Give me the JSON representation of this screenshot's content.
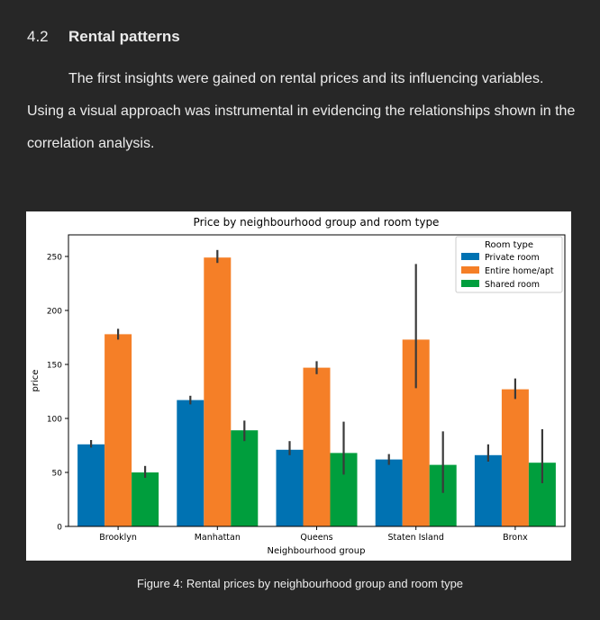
{
  "section": {
    "number": "4.2",
    "title": "Rental patterns"
  },
  "body_text": "The first insights were gained on rental prices and its influencing variables. Using a visual approach was instrumental in evidencing the relationships shown in the correlation analysis.",
  "caption": "Figure 4: Rental prices by neighbourhood group and room type",
  "chart_data": {
    "type": "bar",
    "title": "Price by neighbourhood group and room type",
    "xlabel": "Neighbourhood group",
    "ylabel": "price",
    "ylim": [
      0,
      270
    ],
    "yticks": [
      0,
      50,
      100,
      150,
      200,
      250
    ],
    "categories": [
      "Brooklyn",
      "Manhattan",
      "Queens",
      "Staten Island",
      "Bronx"
    ],
    "legend": {
      "title": "Room type",
      "placement": "top-right"
    },
    "series": [
      {
        "name": "Private room",
        "color": "#0072b2",
        "values": [
          76,
          117,
          71,
          62,
          66
        ],
        "error": [
          [
            73,
            80
          ],
          [
            113,
            121
          ],
          [
            66,
            79
          ],
          [
            57,
            67
          ],
          [
            60,
            76
          ]
        ]
      },
      {
        "name": "Entire home/apt",
        "color": "#f57f27",
        "values": [
          178,
          249,
          147,
          173,
          127
        ],
        "error": [
          [
            173,
            183
          ],
          [
            244,
            256
          ],
          [
            141,
            153
          ],
          [
            128,
            243
          ],
          [
            118,
            137
          ]
        ]
      },
      {
        "name": "Shared room",
        "color": "#009e3d",
        "values": [
          50,
          89,
          68,
          57,
          59
        ],
        "error": [
          [
            45,
            56
          ],
          [
            79,
            98
          ],
          [
            48,
            97
          ],
          [
            31,
            88
          ],
          [
            40,
            90
          ]
        ]
      }
    ]
  }
}
